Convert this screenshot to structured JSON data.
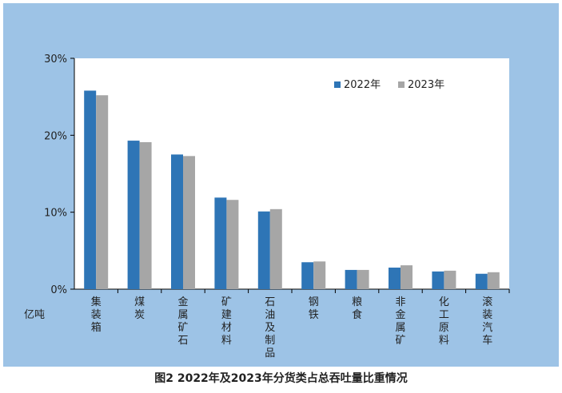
{
  "caption": "图2  2022年及2023年分货类占总吞吐量比重情况",
  "colors": {
    "frame": "#9dc3e6",
    "plot_bg": "#ffffff",
    "series_2022": "#2e75b6",
    "series_2023": "#a6a6a6"
  },
  "chart_data": {
    "type": "bar",
    "ylabel": "亿吨",
    "ylim": [
      0,
      30
    ],
    "yticks": [
      "0%",
      "10%",
      "20%",
      "30%"
    ],
    "categories": [
      "集装箱",
      "煤炭",
      "金属矿石",
      "矿建材料",
      "石油及制品",
      "钢铁",
      "粮食",
      "非金属矿",
      "化工原料",
      "滚装汽车"
    ],
    "series": [
      {
        "name": "2022年",
        "values": [
          25.8,
          19.3,
          17.5,
          11.9,
          10.1,
          3.5,
          2.5,
          2.8,
          2.3,
          2.0
        ]
      },
      {
        "name": "2023年",
        "values": [
          25.2,
          19.1,
          17.3,
          11.6,
          10.4,
          3.6,
          2.5,
          3.1,
          2.4,
          2.2
        ]
      }
    ],
    "legend_position": "top-right",
    "grid": false
  }
}
